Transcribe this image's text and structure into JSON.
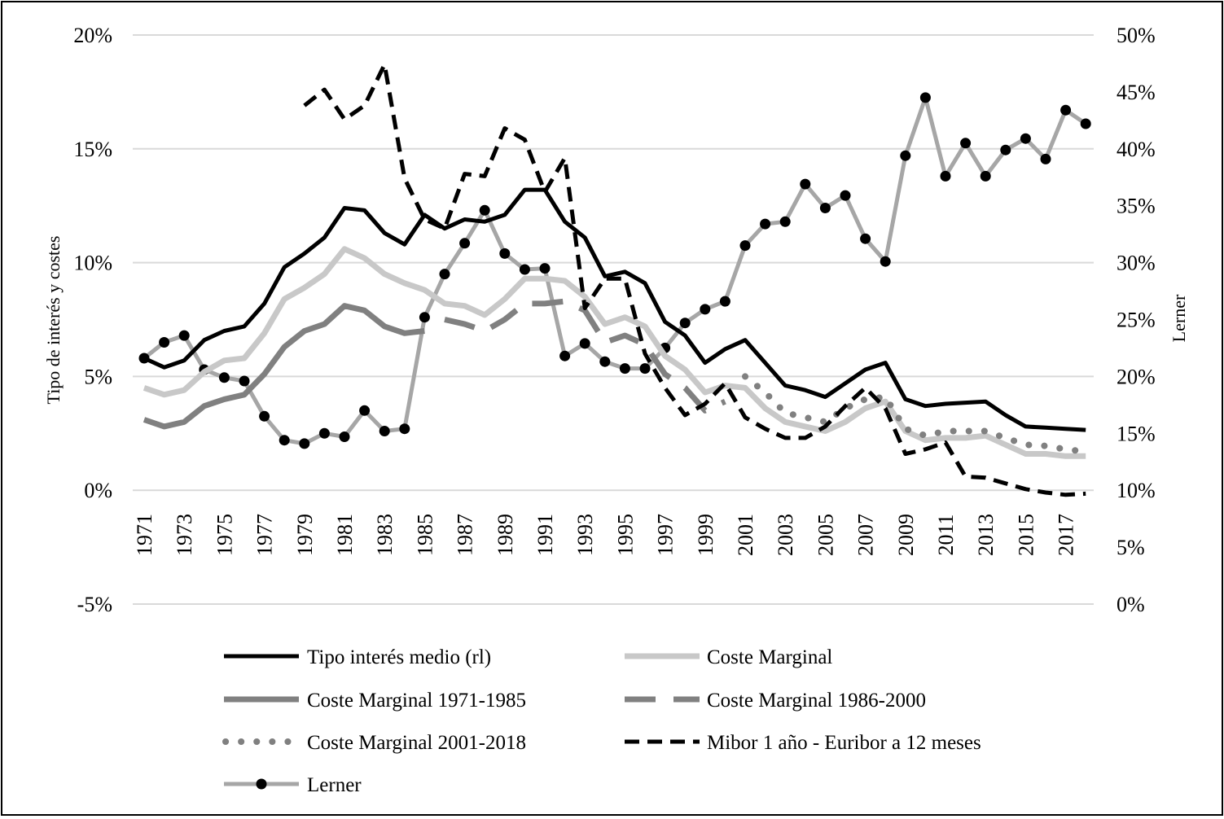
{
  "chart_data": {
    "type": "line",
    "title": "",
    "xlabel": "",
    "ylabel": "Tipo de interés y costes",
    "y2label": "Lerner",
    "ylim": [
      -5,
      20
    ],
    "y2lim": [
      0,
      50
    ],
    "yticks": [
      "-5%",
      "0%",
      "5%",
      "10%",
      "15%",
      "20%"
    ],
    "y2ticks": [
      "0%",
      "5%",
      "10%",
      "15%",
      "20%",
      "25%",
      "30%",
      "35%",
      "40%",
      "45%",
      "50%"
    ],
    "grid": true,
    "legend_position": "bottom",
    "x": [
      1971,
      1972,
      1973,
      1974,
      1975,
      1976,
      1977,
      1978,
      1979,
      1980,
      1981,
      1982,
      1983,
      1984,
      1985,
      1986,
      1987,
      1988,
      1989,
      1990,
      1991,
      1992,
      1993,
      1994,
      1995,
      1996,
      1997,
      1998,
      1999,
      2000,
      2001,
      2002,
      2003,
      2004,
      2005,
      2006,
      2007,
      2008,
      2009,
      2010,
      2011,
      2012,
      2013,
      2014,
      2015,
      2016,
      2017,
      2018
    ],
    "xticks": [
      "1971",
      "1973",
      "1975",
      "1977",
      "1979",
      "1981",
      "1983",
      "1985",
      "1987",
      "1989",
      "1991",
      "1993",
      "1995",
      "1997",
      "1999",
      "2001",
      "2003",
      "2005",
      "2007",
      "2009",
      "2011",
      "2013",
      "2015",
      "2017"
    ],
    "series": [
      {
        "name": "Tipo interés medio (rl)",
        "axis": "left",
        "style": "solid",
        "color": "#000000",
        "values": [
          5.8,
          5.4,
          5.7,
          6.6,
          7.0,
          7.2,
          8.2,
          9.8,
          10.4,
          11.1,
          12.4,
          12.3,
          11.3,
          10.8,
          12.1,
          11.5,
          11.9,
          11.8,
          12.1,
          13.2,
          13.2,
          11.8,
          11.1,
          9.4,
          9.6,
          9.1,
          7.4,
          6.8,
          5.6,
          6.2,
          6.6,
          5.6,
          4.6,
          4.4,
          4.1,
          4.7,
          5.3,
          5.6,
          4.0,
          3.7,
          3.8,
          3.85,
          3.9,
          3.3,
          2.8,
          2.75,
          2.7,
          2.65
        ]
      },
      {
        "name": "Coste Marginal",
        "axis": "left",
        "style": "solid",
        "color": "#c8c8c8",
        "values": [
          4.5,
          4.2,
          4.4,
          5.2,
          5.7,
          5.8,
          6.9,
          8.4,
          8.9,
          9.5,
          10.6,
          10.2,
          9.5,
          9.1,
          8.8,
          8.2,
          8.1,
          7.7,
          8.4,
          9.3,
          9.3,
          9.2,
          8.5,
          7.3,
          7.6,
          7.2,
          5.9,
          5.3,
          4.3,
          4.6,
          4.5,
          3.6,
          3.0,
          2.8,
          2.6,
          3.0,
          3.6,
          3.9,
          2.6,
          2.2,
          2.3,
          2.3,
          2.4,
          2.0,
          1.6,
          1.6,
          1.5,
          1.5
        ]
      },
      {
        "name": "Coste Marginal 1971-1985",
        "axis": "left",
        "style": "solid",
        "color": "#808080",
        "values": [
          3.1,
          2.8,
          3.0,
          3.7,
          4.0,
          4.2,
          5.1,
          6.3,
          7.0,
          7.3,
          8.1,
          7.9,
          7.2,
          6.9,
          7.0,
          null,
          null,
          null,
          null,
          null,
          null,
          null,
          null,
          null,
          null,
          null,
          null,
          null,
          null,
          null,
          null,
          null,
          null,
          null,
          null,
          null,
          null,
          null,
          null,
          null,
          null,
          null,
          null,
          null,
          null,
          null,
          null,
          null
        ]
      },
      {
        "name": "Coste Marginal 1986-2000",
        "axis": "left",
        "style": "long-dash",
        "color": "#808080",
        "values": [
          null,
          null,
          null,
          null,
          null,
          null,
          null,
          null,
          null,
          null,
          null,
          null,
          null,
          null,
          null,
          7.5,
          7.3,
          7.0,
          7.5,
          8.2,
          8.2,
          8.3,
          7.9,
          6.5,
          6.8,
          6.4,
          5.1,
          4.5,
          3.5,
          3.9,
          null,
          null,
          null,
          null,
          null,
          null,
          null,
          null,
          null,
          null,
          null,
          null,
          null,
          null,
          null,
          null,
          null,
          null
        ]
      },
      {
        "name": "Coste Marginal 2001-2018",
        "axis": "left",
        "style": "dots",
        "color": "#808080",
        "values": [
          null,
          null,
          null,
          null,
          null,
          null,
          null,
          null,
          null,
          null,
          null,
          null,
          null,
          null,
          null,
          null,
          null,
          null,
          null,
          null,
          null,
          null,
          null,
          null,
          null,
          null,
          null,
          null,
          null,
          null,
          5.0,
          4.3,
          3.4,
          3.2,
          3.0,
          3.6,
          4.0,
          4.1,
          2.7,
          2.4,
          2.6,
          2.6,
          2.6,
          2.3,
          2.0,
          1.95,
          1.8,
          1.7
        ]
      },
      {
        "name": "Mibor 1 año - Euribor a 12 meses",
        "axis": "left",
        "style": "short-dash",
        "color": "#000000",
        "values": [
          null,
          null,
          null,
          null,
          null,
          null,
          null,
          null,
          16.9,
          17.6,
          16.3,
          16.9,
          18.7,
          13.7,
          11.9,
          11.5,
          13.9,
          13.8,
          15.9,
          15.4,
          13.1,
          14.6,
          8.0,
          9.3,
          9.3,
          6.0,
          4.5,
          3.3,
          3.8,
          4.7,
          3.2,
          2.7,
          2.3,
          2.3,
          2.8,
          3.7,
          4.5,
          3.6,
          1.6,
          1.8,
          2.1,
          0.6,
          0.55,
          0.3,
          0.05,
          -0.1,
          -0.2,
          -0.15
        ]
      },
      {
        "name": "Lerner",
        "axis": "right",
        "style": "markers",
        "color": "#a6a6a6",
        "values": [
          21.6,
          23.0,
          23.6,
          20.6,
          19.9,
          19.6,
          16.5,
          14.4,
          14.1,
          15.0,
          14.7,
          17.0,
          15.2,
          15.4,
          25.2,
          29.0,
          31.7,
          34.6,
          30.8,
          29.4,
          29.5,
          21.8,
          22.9,
          21.3,
          20.7,
          20.7,
          22.5,
          24.7,
          25.9,
          26.6,
          31.5,
          33.4,
          33.6,
          36.9,
          34.8,
          35.9,
          32.1,
          30.1,
          39.4,
          44.5,
          37.6,
          40.5,
          37.6,
          39.9,
          40.9,
          39.1,
          43.4,
          42.2
        ]
      }
    ]
  },
  "legend": [
    {
      "label": "Tipo interés medio (rl)"
    },
    {
      "label": "Coste Marginal"
    },
    {
      "label": "Coste Marginal 1971-1985"
    },
    {
      "label": "Coste Marginal 1986-2000"
    },
    {
      "label": "Coste Marginal 2001-2018"
    },
    {
      "label": "Mibor 1 año - Euribor a 12 meses"
    },
    {
      "label": "Lerner"
    }
  ]
}
